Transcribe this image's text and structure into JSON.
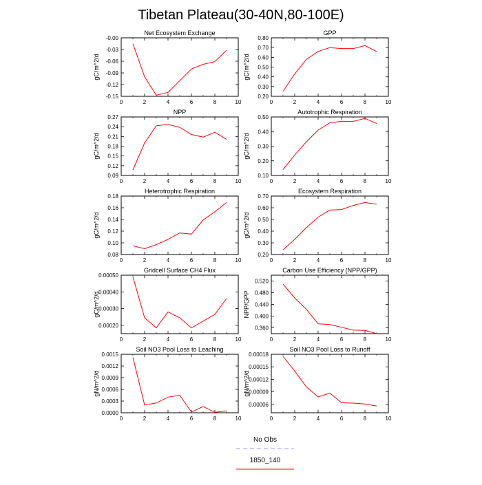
{
  "figure": {
    "title": "Tibetan Plateau(30-40N,80-100E)",
    "legend": [
      {
        "label": "No Obs",
        "color": "#9999ff",
        "dash": true
      },
      {
        "label": "1850_140",
        "color": "#ff0000",
        "dash": false
      }
    ]
  },
  "chart_data": [
    {
      "type": "line",
      "title": "Net Ecosystem Exchange",
      "ylabel": "gC/m^2/d",
      "x": [
        1,
        2,
        3,
        4,
        5,
        6,
        7,
        8,
        9
      ],
      "series": [
        {
          "name": "1850_140",
          "color": "#ff0000",
          "values": [
            -0.015,
            -0.1,
            -0.147,
            -0.14,
            -0.11,
            -0.08,
            -0.068,
            -0.061,
            -0.032
          ]
        }
      ],
      "xlim": [
        0,
        10
      ],
      "ylim": [
        -0.15,
        0.0
      ],
      "xticks": [
        0,
        2,
        4,
        6,
        8,
        10
      ],
      "xtick_labels": [
        "0",
        "2",
        "4",
        "6",
        "8",
        "10"
      ],
      "yticks": [
        -0.15,
        -0.12,
        -0.09,
        -0.06,
        -0.03,
        0.0
      ],
      "ytick_labels": [
        "-0.15",
        "-0.12",
        "-0.09",
        "-0.06",
        "-0.03",
        "-0.00"
      ]
    },
    {
      "type": "line",
      "title": "GPP",
      "ylabel": "gC/m^2/d",
      "x": [
        1,
        2,
        3,
        4,
        5,
        6,
        7,
        8,
        9
      ],
      "series": [
        {
          "name": "1850_140",
          "color": "#ff0000",
          "values": [
            0.25,
            0.43,
            0.58,
            0.66,
            0.7,
            0.69,
            0.69,
            0.72,
            0.66
          ]
        }
      ],
      "xlim": [
        0,
        10
      ],
      "ylim": [
        0.2,
        0.8
      ],
      "xticks": [
        0,
        2,
        4,
        6,
        8,
        10
      ],
      "xtick_labels": [
        "0",
        "2",
        "4",
        "6",
        "8",
        "10"
      ],
      "yticks": [
        0.2,
        0.3,
        0.4,
        0.5,
        0.6,
        0.7,
        0.8
      ],
      "ytick_labels": [
        "0.20",
        "0.30",
        "0.40",
        "0.50",
        "0.60",
        "0.70",
        "0.80"
      ]
    },
    {
      "type": "line",
      "title": "NPP",
      "ylabel": "gC/m^2/d",
      "x": [
        1,
        2,
        3,
        4,
        5,
        6,
        7,
        8,
        9
      ],
      "series": [
        {
          "name": "1850_140",
          "color": "#ff0000",
          "values": [
            0.107,
            0.19,
            0.243,
            0.247,
            0.238,
            0.216,
            0.208,
            0.223,
            0.201
          ]
        }
      ],
      "xlim": [
        0,
        10
      ],
      "ylim": [
        0.09,
        0.27
      ],
      "xticks": [
        0,
        2,
        4,
        6,
        8,
        10
      ],
      "xtick_labels": [
        "0",
        "2",
        "4",
        "6",
        "8",
        "10"
      ],
      "yticks": [
        0.09,
        0.12,
        0.15,
        0.18,
        0.21,
        0.24,
        0.27
      ],
      "ytick_labels": [
        "0.09",
        "0.12",
        "0.15",
        "0.18",
        "0.21",
        "0.24",
        "0.27"
      ]
    },
    {
      "type": "line",
      "title": "Autotrophic Respiration",
      "ylabel": "gC/m^2/d",
      "x": [
        1,
        2,
        3,
        4,
        5,
        6,
        7,
        8,
        9
      ],
      "series": [
        {
          "name": "1850_140",
          "color": "#ff0000",
          "values": [
            0.14,
            0.24,
            0.33,
            0.41,
            0.46,
            0.47,
            0.47,
            0.49,
            0.455
          ]
        }
      ],
      "xlim": [
        0,
        10
      ],
      "ylim": [
        0.1,
        0.5
      ],
      "xticks": [
        0,
        2,
        4,
        6,
        8,
        10
      ],
      "xtick_labels": [
        "0",
        "2",
        "4",
        "6",
        "8",
        "10"
      ],
      "yticks": [
        0.1,
        0.2,
        0.3,
        0.4,
        0.5
      ],
      "ytick_labels": [
        "0.10",
        "0.20",
        "0.30",
        "0.40",
        "0.50"
      ]
    },
    {
      "type": "line",
      "title": "Heterotrophic Respiration",
      "ylabel": "gC/m^2/d",
      "x": [
        1,
        2,
        3,
        4,
        5,
        6,
        7,
        8,
        9
      ],
      "series": [
        {
          "name": "1850_140",
          "color": "#ff0000",
          "values": [
            0.095,
            0.09,
            0.097,
            0.106,
            0.117,
            0.115,
            0.139,
            0.153,
            0.169
          ]
        }
      ],
      "xlim": [
        0,
        10
      ],
      "ylim": [
        0.08,
        0.18
      ],
      "xticks": [
        0,
        2,
        4,
        6,
        8,
        10
      ],
      "xtick_labels": [
        "0",
        "2",
        "4",
        "6",
        "8",
        "10"
      ],
      "yticks": [
        0.08,
        0.1,
        0.12,
        0.14,
        0.16,
        0.18
      ],
      "ytick_labels": [
        "0.08",
        "0.10",
        "0.12",
        "0.14",
        "0.16",
        "0.18"
      ]
    },
    {
      "type": "line",
      "title": "Ecosystem Respiration",
      "ylabel": "gC/m^2/d",
      "x": [
        1,
        2,
        3,
        4,
        5,
        6,
        7,
        8,
        9
      ],
      "series": [
        {
          "name": "1850_140",
          "color": "#ff0000",
          "values": [
            0.24,
            0.33,
            0.43,
            0.52,
            0.58,
            0.585,
            0.62,
            0.645,
            0.63
          ]
        }
      ],
      "xlim": [
        0,
        10
      ],
      "ylim": [
        0.2,
        0.7
      ],
      "xticks": [
        0,
        2,
        4,
        6,
        8,
        10
      ],
      "xtick_labels": [
        "0",
        "2",
        "4",
        "6",
        "8",
        "10"
      ],
      "yticks": [
        0.2,
        0.3,
        0.4,
        0.5,
        0.6,
        0.7
      ],
      "ytick_labels": [
        "0.20",
        "0.30",
        "0.40",
        "0.50",
        "0.60",
        "0.70"
      ]
    },
    {
      "type": "line",
      "title": "Gridcell Surface CH4 Flux",
      "ylabel": "gC/m^2/d",
      "x": [
        1,
        2,
        3,
        4,
        5,
        6,
        7,
        8,
        9
      ],
      "series": [
        {
          "name": "1850_140",
          "color": "#ff0000",
          "values": [
            0.00049,
            0.000245,
            0.000185,
            0.00028,
            0.000245,
            0.000185,
            0.000225,
            0.000265,
            0.00036
          ]
        }
      ],
      "xlim": [
        0,
        10
      ],
      "ylim": [
        0.00015,
        0.0005
      ],
      "xticks": [
        0,
        2,
        4,
        6,
        8,
        10
      ],
      "xtick_labels": [
        "0",
        "2",
        "4",
        "6",
        "8",
        "10"
      ],
      "yticks": [
        0.0002,
        0.0003,
        0.0004,
        0.0005
      ],
      "ytick_labels": [
        "0.00020",
        "0.00030",
        "0.00040",
        "0.00050"
      ]
    },
    {
      "type": "line",
      "title": "Carbon Use Efficiency (NPP/GPP)",
      "ylabel": "NPP/GPP",
      "x": [
        1,
        2,
        3,
        4,
        5,
        6,
        7,
        8,
        9
      ],
      "series": [
        {
          "name": "1850_140",
          "color": "#ff0000",
          "values": [
            0.51,
            0.462,
            0.423,
            0.374,
            0.371,
            0.362,
            0.352,
            0.351,
            0.34
          ]
        }
      ],
      "xlim": [
        0,
        10
      ],
      "ylim": [
        0.34,
        0.54
      ],
      "xticks": [
        0,
        2,
        4,
        6,
        8,
        10
      ],
      "xtick_labels": [
        "0",
        "2",
        "4",
        "6",
        "8",
        "10"
      ],
      "yticks": [
        0.36,
        0.4,
        0.44,
        0.48,
        0.52
      ],
      "ytick_labels": [
        "0.360",
        "0.400",
        "0.440",
        "0.480",
        "0.520"
      ]
    },
    {
      "type": "line",
      "title": "Soil NO3 Pool Loss to Leaching",
      "ylabel": "gN/m^2/d",
      "x": [
        1,
        2,
        3,
        4,
        5,
        6,
        7,
        8,
        9
      ],
      "series": [
        {
          "name": "1850_140",
          "color": "#ff0000",
          "values": [
            0.00142,
            0.0002,
            0.00025,
            0.0004,
            0.00045,
            2e-05,
            0.00016,
            1e-05,
            5e-05
          ]
        }
      ],
      "xlim": [
        0,
        10
      ],
      "ylim": [
        0.0,
        0.0015
      ],
      "xticks": [
        0,
        2,
        4,
        6,
        8,
        10
      ],
      "xtick_labels": [
        "0",
        "2",
        "4",
        "6",
        "8",
        "10"
      ],
      "yticks": [
        0.0,
        0.0003,
        0.0006,
        0.0009,
        0.0012,
        0.0015
      ],
      "ytick_labels": [
        "0.0000",
        "0.0003",
        "0.0006",
        "0.0009",
        "0.0012",
        "0.0015"
      ]
    },
    {
      "type": "line",
      "title": "Soil NO3 Pool Loss to Runoff",
      "ylabel": "gN/m^2/d",
      "x": [
        1,
        2,
        3,
        4,
        5,
        6,
        7,
        8,
        9
      ],
      "series": [
        {
          "name": "1850_140",
          "color": "#ff0000",
          "values": [
            0.000175,
            0.00014,
            0.000102,
            7.8e-05,
            8.7e-05,
            6.4e-05,
            6.3e-05,
            6.1e-05,
            5.6e-05
          ]
        }
      ],
      "xlim": [
        0,
        10
      ],
      "ylim": [
        4e-05,
        0.00018
      ],
      "xticks": [
        0,
        2,
        4,
        6,
        8,
        10
      ],
      "xtick_labels": [
        "0",
        "2",
        "4",
        "6",
        "8",
        "10"
      ],
      "yticks": [
        6e-05,
        9e-05,
        0.00012,
        0.00015,
        0.00018
      ],
      "ytick_labels": [
        "0.00006",
        "0.00009",
        "0.00012",
        "0.00015",
        "0.00018"
      ]
    }
  ]
}
